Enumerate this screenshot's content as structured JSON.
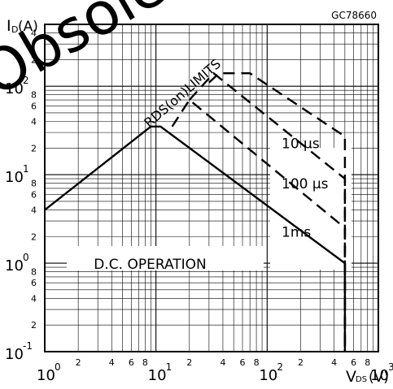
{
  "figure_code": "GC78660",
  "watermark_text": "Obsolete",
  "chart_data": {
    "type": "line",
    "title": "",
    "xlabel": "V_DS(V)",
    "ylabel": "I_D(A)",
    "xscale": "log",
    "yscale": "log",
    "xlim": [
      1,
      1000
    ],
    "ylim": [
      0.1,
      500
    ],
    "grid": true,
    "x_decade_labels": [
      {
        "mantissa": "10",
        "exp": "0"
      },
      {
        "mantissa": "10",
        "exp": "1"
      },
      {
        "mantissa": "10",
        "exp": "2"
      },
      {
        "mantissa": "10",
        "exp": "3"
      }
    ],
    "y_decade_labels": [
      {
        "mantissa": "10",
        "exp": "-1"
      },
      {
        "mantissa": "10",
        "exp": "0"
      },
      {
        "mantissa": "10",
        "exp": "1"
      },
      {
        "mantissa": "10",
        "exp": "2"
      }
    ],
    "minor_tick_labels": [
      "2",
      "4",
      "6",
      "8"
    ],
    "series": [
      {
        "name": "D.C. OPERATION",
        "style": "solid",
        "x": [
          1,
          9,
          11,
          500,
          500
        ],
        "y": [
          4,
          35,
          35,
          1,
          0.1
        ]
      },
      {
        "name": "1ms",
        "style": "dashed",
        "x": [
          14,
          20,
          500,
          500
        ],
        "y": [
          35,
          70,
          2.5,
          0.1
        ]
      },
      {
        "name": "100 µs",
        "style": "dashed",
        "x": [
          20,
          33,
          500,
          500
        ],
        "y": [
          70,
          140,
          9,
          0.1
        ]
      },
      {
        "name": "10 µs",
        "style": "dashed",
        "x": [
          30,
          37,
          70,
          500,
          500
        ],
        "y": [
          110,
          140,
          140,
          27,
          0.1
        ]
      }
    ],
    "annotations": [
      {
        "text": "RDS(on)LIMITS",
        "x": 6,
        "y": 25
      },
      {
        "text": "10 µs",
        "x": 530,
        "y": 20
      },
      {
        "text": "100 µs",
        "x": 530,
        "y": 7
      },
      {
        "text": "1ms",
        "x": 530,
        "y": 2
      },
      {
        "text": "D.C. OPERATION",
        "x": 4,
        "y": 0.9
      }
    ]
  }
}
